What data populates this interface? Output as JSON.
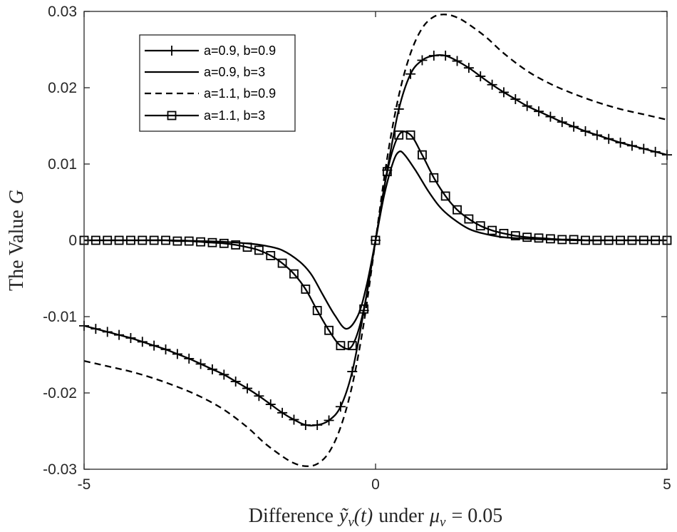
{
  "chart_data": {
    "type": "line",
    "xlabel_prefix": "Difference",
    "xlabel_symbol": "ỹ",
    "xlabel_sub": "v",
    "xlabel_arg": "(t)",
    "xlabel_middle": "under",
    "xlabel_mu": "μ",
    "xlabel_mu_sub": "v",
    "xlabel_eq": "= 0.05",
    "ylabel_prefix": "The Value",
    "ylabel_symbol": "G",
    "xlim": [
      -5,
      5
    ],
    "ylim": [
      -0.03,
      0.03
    ],
    "xticks": [
      -5,
      0,
      5
    ],
    "yticks": [
      -0.03,
      -0.02,
      -0.01,
      0,
      0.01,
      0.02,
      0.03
    ],
    "xtick_labels": [
      "-5",
      "0",
      "5"
    ],
    "ytick_labels": [
      "-0.03",
      "-0.02",
      "-0.01",
      "0",
      "0.01",
      "0.02",
      "0.03"
    ],
    "grid": false,
    "legend_position": "top-left",
    "series": [
      {
        "name": "a=0.9, b=0.9",
        "style": "solid",
        "marker": "plus",
        "x": [
          -5,
          -4.8,
          -4.6,
          -4.4,
          -4.2,
          -4,
          -3.8,
          -3.6,
          -3.4,
          -3.2,
          -3,
          -2.8,
          -2.6,
          -2.4,
          -2.2,
          -2,
          -1.8,
          -1.6,
          -1.4,
          -1.2,
          -1,
          -0.8,
          -0.6,
          -0.4,
          -0.2,
          0,
          0.2,
          0.4,
          0.6,
          0.8,
          1,
          1.2,
          1.4,
          1.6,
          1.8,
          2,
          2.2,
          2.4,
          2.6,
          2.8,
          3,
          3.2,
          3.4,
          3.6,
          3.8,
          4,
          4.2,
          4.4,
          4.6,
          4.8,
          5
        ],
        "y": [
          -0.0112,
          -0.0116,
          -0.012,
          -0.0124,
          -0.0128,
          -0.0133,
          -0.0138,
          -0.0143,
          -0.0149,
          -0.0155,
          -0.0162,
          -0.0169,
          -0.0176,
          -0.0185,
          -0.0194,
          -0.0204,
          -0.0215,
          -0.0226,
          -0.0235,
          -0.0242,
          -0.0242,
          -0.0236,
          -0.0218,
          -0.0172,
          -0.0092,
          0,
          0.0092,
          0.0172,
          0.0218,
          0.0236,
          0.0242,
          0.0242,
          0.0235,
          0.0226,
          0.0215,
          0.0204,
          0.0194,
          0.0185,
          0.0176,
          0.0169,
          0.0162,
          0.0155,
          0.0149,
          0.0143,
          0.0138,
          0.0133,
          0.0128,
          0.0124,
          0.012,
          0.0116,
          0.0112
        ]
      },
      {
        "name": "a=0.9, b=3",
        "style": "solid",
        "marker": "none",
        "x": [
          -5,
          -4.5,
          -4,
          -3.5,
          -3,
          -2.6,
          -2.2,
          -1.9,
          -1.6,
          -1.3,
          -1.1,
          -0.9,
          -0.7,
          -0.5,
          -0.3,
          -0.15,
          0,
          0.15,
          0.3,
          0.4,
          0.5,
          0.7,
          0.9,
          1.1,
          1.3,
          1.6,
          1.9,
          2.2,
          2.6,
          3,
          3.5,
          4,
          4.5,
          5
        ],
        "y": [
          0,
          0,
          0,
          0,
          -0.0001,
          -0.0002,
          -0.0004,
          -0.0007,
          -0.0013,
          -0.0028,
          -0.0045,
          -0.0072,
          -0.0098,
          -0.0116,
          -0.0098,
          -0.0058,
          0,
          0.006,
          0.0102,
          0.0116,
          0.0112,
          0.009,
          0.0065,
          0.0044,
          0.003,
          0.0015,
          0.0008,
          0.0004,
          0.0002,
          0.0001,
          0,
          0,
          0,
          0
        ]
      },
      {
        "name": "a=1.1, b=0.9",
        "style": "dashed",
        "marker": "none",
        "x": [
          -5,
          -4.6,
          -4.2,
          -3.8,
          -3.4,
          -3,
          -2.6,
          -2.2,
          -1.9,
          -1.6,
          -1.4,
          -1.2,
          -1,
          -0.8,
          -0.6,
          -0.4,
          -0.2,
          0,
          0.2,
          0.4,
          0.6,
          0.8,
          1,
          1.2,
          1.4,
          1.6,
          1.9,
          2.2,
          2.6,
          3,
          3.4,
          3.8,
          4.2,
          4.6,
          5
        ],
        "y": [
          -0.0158,
          -0.0165,
          -0.0172,
          -0.0181,
          -0.0192,
          -0.0205,
          -0.0222,
          -0.0245,
          -0.0266,
          -0.0283,
          -0.0292,
          -0.0296,
          -0.0293,
          -0.0278,
          -0.0245,
          -0.019,
          -0.0108,
          0,
          0.0108,
          0.019,
          0.0245,
          0.0278,
          0.0293,
          0.0296,
          0.0292,
          0.0283,
          0.0266,
          0.0245,
          0.0222,
          0.0205,
          0.0192,
          0.0181,
          0.0172,
          0.0165,
          0.0158
        ]
      },
      {
        "name": "a=1.1, b=3",
        "style": "solid",
        "marker": "square",
        "x": [
          -5,
          -4.8,
          -4.6,
          -4.4,
          -4.2,
          -4,
          -3.8,
          -3.6,
          -3.4,
          -3.2,
          -3,
          -2.8,
          -2.6,
          -2.4,
          -2.2,
          -2,
          -1.8,
          -1.6,
          -1.4,
          -1.2,
          -1,
          -0.8,
          -0.6,
          -0.4,
          -0.2,
          0,
          0.2,
          0.4,
          0.6,
          0.8,
          1,
          1.2,
          1.4,
          1.6,
          1.8,
          2,
          2.2,
          2.4,
          2.6,
          2.8,
          3,
          3.2,
          3.4,
          3.6,
          3.8,
          4,
          4.2,
          4.4,
          4.6,
          4.8,
          5
        ],
        "y": [
          0,
          0,
          0,
          0,
          0,
          0,
          0,
          0,
          -0.0001,
          -0.0001,
          -0.0002,
          -0.0003,
          -0.0004,
          -0.0006,
          -0.0009,
          -0.0013,
          -0.002,
          -0.003,
          -0.0044,
          -0.0064,
          -0.0092,
          -0.0118,
          -0.0138,
          -0.0138,
          -0.009,
          0,
          0.009,
          0.0138,
          0.0138,
          0.0112,
          0.0082,
          0.0058,
          0.004,
          0.0028,
          0.0019,
          0.0013,
          0.0009,
          0.0006,
          0.0004,
          0.0003,
          0.0002,
          0.0001,
          0.0001,
          0,
          0,
          0,
          0,
          0,
          0,
          0,
          0
        ]
      }
    ]
  }
}
